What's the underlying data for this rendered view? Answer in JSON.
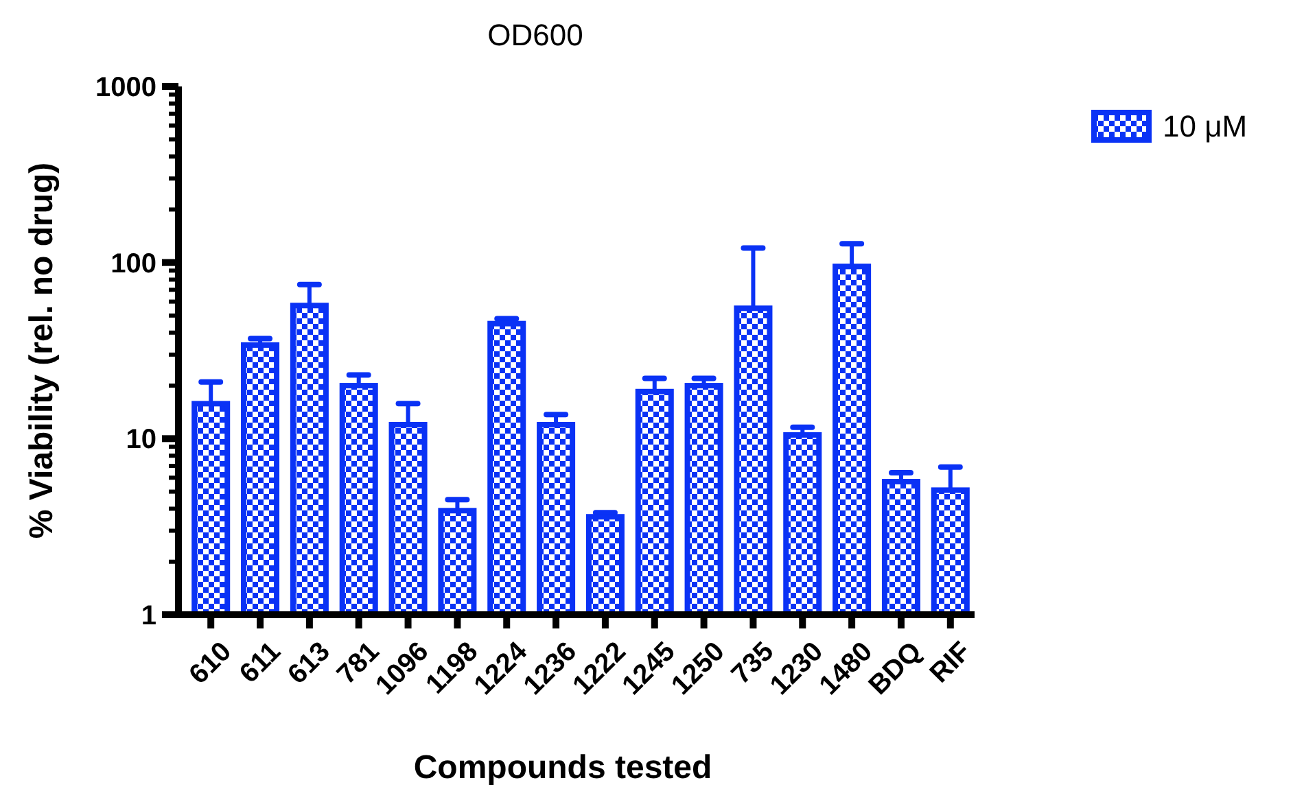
{
  "chart_data": {
    "type": "bar",
    "title": "OD600",
    "xlabel": "Compounds tested",
    "ylabel": "% Viability (rel. no drug)",
    "categories": [
      "610",
      "611",
      "613",
      "781",
      "1096",
      "1198",
      "1224",
      "1236",
      "1222",
      "1245",
      "1250",
      "735",
      "1230",
      "1480",
      "BDQ",
      "RIF"
    ],
    "series": [
      {
        "name": "10 μM",
        "color": "#0a32f5",
        "values": [
          15.8,
          34,
          57,
          20,
          12,
          3.9,
          45,
          12,
          3.6,
          18.5,
          20,
          55,
          10.5,
          95,
          5.7,
          5.1
        ],
        "errors": [
          [
            15.8,
            21
          ],
          [
            34,
            37
          ],
          [
            57,
            75
          ],
          [
            20,
            23
          ],
          [
            12,
            15.8
          ],
          [
            3.9,
            4.5
          ],
          [
            45,
            48
          ],
          [
            12,
            13.7
          ],
          [
            3.6,
            3.8
          ],
          [
            18.5,
            22
          ],
          [
            20,
            22
          ],
          [
            55,
            121
          ],
          [
            10.5,
            11.6
          ],
          [
            95,
            128
          ],
          [
            5.7,
            6.4
          ],
          [
            5.1,
            6.9
          ]
        ]
      }
    ],
    "log": "y",
    "ylim": [
      1,
      1000
    ],
    "yticks": [
      1,
      {
        "value": 2,
        "label": null
      },
      {
        "value": 3,
        "label": null
      },
      {
        "value": 4,
        "label": null
      },
      {
        "value": 5,
        "label": null
      },
      {
        "value": 6,
        "label": null
      },
      {
        "value": 7,
        "label": null
      },
      {
        "value": 8,
        "label": null
      },
      {
        "value": 9,
        "label": null
      },
      10,
      {
        "value": 20,
        "label": null
      },
      {
        "value": 30,
        "label": null
      },
      {
        "value": 40,
        "label": null
      },
      {
        "value": 50,
        "label": null
      },
      {
        "value": 60,
        "label": null
      },
      {
        "value": 70,
        "label": null
      },
      {
        "value": 80,
        "label": null
      },
      {
        "value": 90,
        "label": null
      },
      100,
      {
        "value": 200,
        "label": null
      },
      {
        "value": 300,
        "label": null
      },
      {
        "value": 400,
        "label": null
      },
      {
        "value": 500,
        "label": null
      },
      {
        "value": 600,
        "label": null
      },
      {
        "value": 700,
        "label": null
      },
      {
        "value": 800,
        "label": null
      },
      {
        "value": 900,
        "label": null
      },
      1000
    ],
    "grid": false,
    "legend": "top right"
  }
}
